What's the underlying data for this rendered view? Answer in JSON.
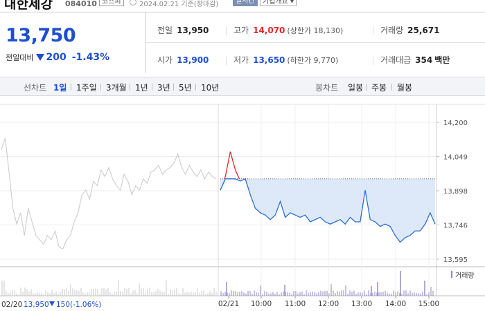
{
  "header": {
    "stock_name": "대한제강",
    "stock_code": "084010",
    "market": "코스피",
    "as_of": "2024.02.21 기준(장마감)",
    "realtime_label": "실시간",
    "company_info_label": "기업개요 ▾"
  },
  "quote": {
    "price": "13,750",
    "change_label": "전일대비",
    "change_amount": "200",
    "change_percent": "-1.43%",
    "direction_color": "#1d4fcf"
  },
  "stats": {
    "prev_close_label": "전일",
    "prev_close": "13,950",
    "high_label": "고가",
    "high": "14,070",
    "upper_limit": "(상한가 18,130)",
    "volume_label": "거래량",
    "volume": "25,671",
    "open_label": "시가",
    "open": "13,900",
    "low_label": "저가",
    "low": "13,650",
    "lower_limit": "(하한가 9,770)",
    "trade_value_label": "거래대금",
    "trade_value": "354",
    "trade_value_unit": "백만"
  },
  "toolbar": {
    "line_chart_label": "선차트",
    "periods": [
      "1일",
      "1주일",
      "3개월",
      "1년",
      "3년",
      "5년",
      "10년"
    ],
    "selected_period": "1일",
    "candle_chart_label": "봉차트",
    "candle_periods": [
      "일봉",
      "주봉",
      "월봉"
    ]
  },
  "chart_data": {
    "type": "line",
    "y_ticks": [
      "14,200",
      "14,049",
      "13,898",
      "13,746",
      "13,595"
    ],
    "ylim": [
      13595,
      14200
    ],
    "reference_price": 13950,
    "x_ticks": [
      "02/21",
      "10:00",
      "11:00",
      "12:00",
      "13:00",
      "14:00",
      "15:00"
    ],
    "prev_day": {
      "date_label": "02/20",
      "close": "13,950",
      "change": "150",
      "change_percent": "(-1.06%)",
      "values": [
        14080,
        14130,
        13980,
        13820,
        13750,
        13800,
        13700,
        13820,
        13760,
        13700,
        13680,
        13660,
        13700,
        13680,
        13720,
        13650,
        13640,
        13680,
        13700,
        13760,
        13800,
        13880,
        13900,
        13860,
        13940,
        13920,
        13990,
        13960,
        14000,
        13950,
        13920,
        13900,
        13970,
        13940,
        13880,
        13920,
        13900,
        13950,
        13930,
        13980,
        13990,
        14010,
        13970,
        13990,
        14000,
        14020,
        14060,
        14000,
        13970,
        14010,
        13980,
        13960,
        13990,
        13950,
        13980,
        13960,
        13950
      ]
    },
    "today": {
      "values": [
        13900,
        13960,
        14070,
        13990,
        13940,
        13950,
        13880,
        13820,
        13800,
        13790,
        13770,
        13790,
        13850,
        13780,
        13800,
        13790,
        13780,
        13790,
        13760,
        13770,
        13780,
        13760,
        13750,
        13760,
        13770,
        13750,
        13780,
        13760,
        13760,
        13900,
        13770,
        13760,
        13740,
        13750,
        13740,
        13700,
        13670,
        13690,
        13700,
        13720,
        13720,
        13750,
        13800,
        13750
      ]
    },
    "volume_label": "거래량",
    "colors": {
      "today_line": "#2a6dd2",
      "above_ref_line": "#e0262b",
      "fill": "#dde9f9",
      "prev_line": "#c8c8c8",
      "volume_prev": "#c9c9c9",
      "volume_today": "#8d86c4"
    }
  }
}
